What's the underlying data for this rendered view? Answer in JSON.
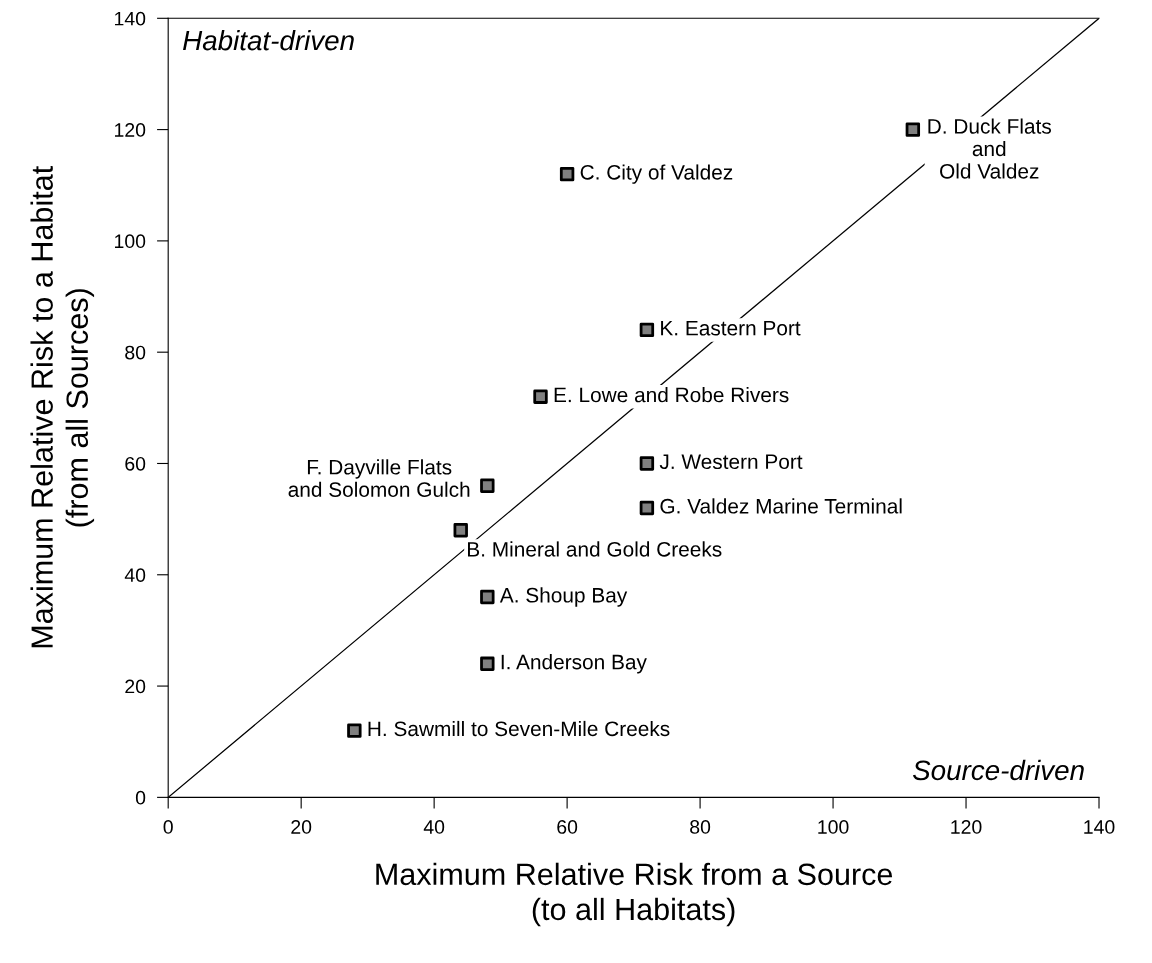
{
  "chart_data": {
    "type": "scatter",
    "xlabel": "Maximum Relative Risk from a Source\n(to all Habitats)",
    "ylabel": "Maximum Relative Risk to a Habitat\n(from all Sources)",
    "xlim": [
      0,
      140
    ],
    "ylim": [
      0,
      140
    ],
    "xticks": [
      0,
      20,
      40,
      60,
      80,
      100,
      120,
      140
    ],
    "yticks": [
      0,
      20,
      40,
      60,
      80,
      100,
      120,
      140
    ],
    "grid": false,
    "marker": "square",
    "series": [
      {
        "type": "line",
        "marker": "none",
        "color": "#000000",
        "x": [
          0,
          140
        ],
        "values": [
          0,
          140
        ]
      },
      {
        "color": "#808080",
        "x": [
          48,
          44,
          60,
          112,
          56,
          48,
          72,
          28,
          48,
          72,
          72
        ],
        "values": [
          36,
          48,
          112,
          120,
          72,
          56,
          52,
          12,
          24,
          60,
          84
        ]
      }
    ],
    "annotations": [
      "Habitat-driven",
      "Source-driven",
      {
        "text": "A. Shoup Bay",
        "x": 48,
        "y": 36
      },
      {
        "text": "B. Mineral and Gold Creeks",
        "x": 44,
        "y": 48
      },
      {
        "text": "C. City of Valdez",
        "x": 60,
        "y": 112
      },
      {
        "text": "D. Duck Flats\nand\nOld Valdez",
        "x": 112,
        "y": 120
      },
      {
        "text": "E. Lowe and Robe Rivers",
        "x": 56,
        "y": 72
      },
      {
        "text": "F. Dayville Flats\nand Solomon Gulch",
        "x": 48,
        "y": 56
      },
      {
        "text": "G. Valdez Marine Terminal",
        "x": 72,
        "y": 52
      },
      {
        "text": "H. Sawmill to Seven-Mile Creeks",
        "x": 28,
        "y": 12
      },
      {
        "text": "I. Anderson Bay",
        "x": 48,
        "y": 24
      },
      {
        "text": "J. Western Port",
        "x": 72,
        "y": 60
      },
      {
        "text": "K. Eastern Port",
        "x": 72,
        "y": 84
      }
    ]
  }
}
